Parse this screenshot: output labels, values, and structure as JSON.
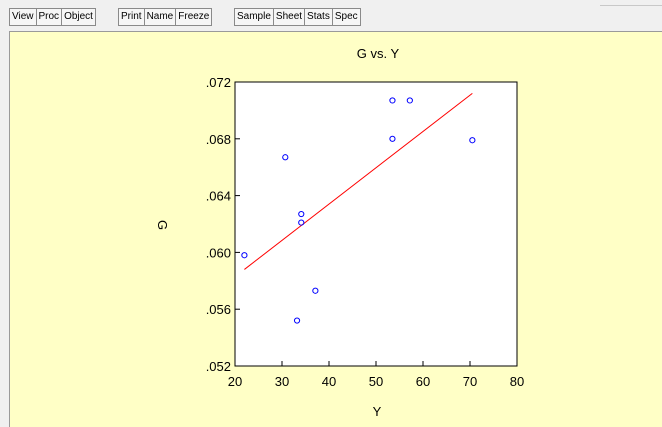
{
  "toolbar": {
    "groups": [
      [
        "View",
        "Proc",
        "Object"
      ],
      [
        "Print",
        "Name",
        "Freeze"
      ],
      [
        "Sample",
        "Sheet",
        "Stats",
        "Spec"
      ]
    ]
  },
  "chart_data": {
    "type": "scatter",
    "title": "G vs. Y",
    "xlabel": "Y",
    "ylabel": "G",
    "xlim": [
      20,
      80
    ],
    "ylim": [
      0.052,
      0.072
    ],
    "xticks": [
      "20",
      "30",
      "40",
      "50",
      "60",
      "70",
      "80"
    ],
    "xtick_values": [
      20,
      30,
      40,
      50,
      60,
      70,
      80
    ],
    "yticks": [
      ".052",
      ".056",
      ".060",
      ".064",
      ".068",
      ".072"
    ],
    "ytick_values": [
      0.052,
      0.056,
      0.06,
      0.064,
      0.068,
      0.072
    ],
    "grid": false,
    "point_color": "#0000ff",
    "line_color": "#ff0000",
    "points": [
      {
        "x": 22.0,
        "y": 0.0598
      },
      {
        "x": 30.7,
        "y": 0.0667
      },
      {
        "x": 33.2,
        "y": 0.0552
      },
      {
        "x": 34.1,
        "y": 0.0627
      },
      {
        "x": 34.1,
        "y": 0.0621
      },
      {
        "x": 37.1,
        "y": 0.0573
      },
      {
        "x": 53.5,
        "y": 0.0707
      },
      {
        "x": 53.5,
        "y": 0.068
      },
      {
        "x": 57.2,
        "y": 0.0707
      },
      {
        "x": 70.5,
        "y": 0.0679
      }
    ],
    "fit_line": {
      "x": [
        22.0,
        70.5
      ],
      "y": [
        0.0588,
        0.0712
      ]
    }
  }
}
